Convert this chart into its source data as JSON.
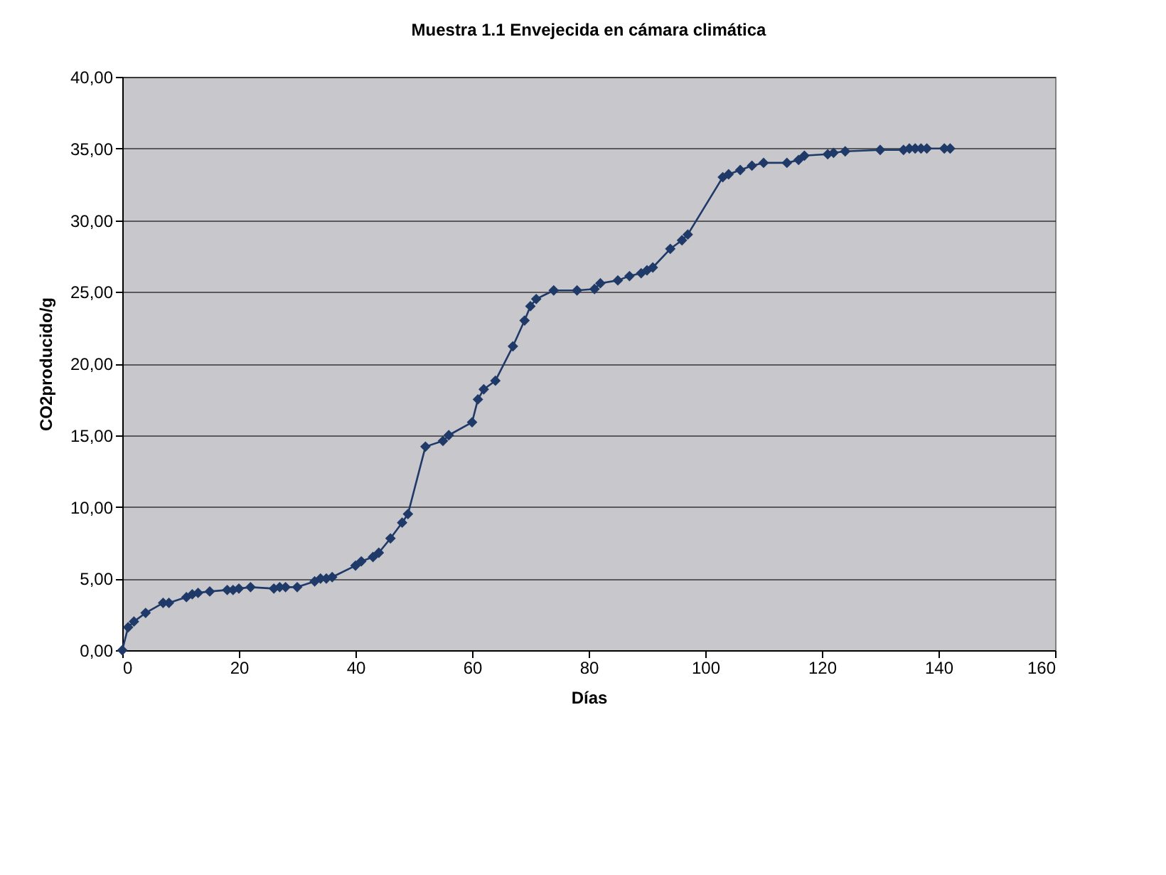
{
  "chart_data": {
    "type": "line",
    "title": "Muestra 1.1 Envejecida en cámara climática",
    "xlabel": "Días",
    "ylabel": "CO2producido/g",
    "x": [
      0,
      1,
      2,
      4,
      7,
      8,
      11,
      12,
      13,
      15,
      18,
      19,
      20,
      22,
      26,
      27,
      28,
      30,
      33,
      34,
      35,
      36,
      40,
      41,
      43,
      44,
      46,
      48,
      49,
      52,
      55,
      56,
      60,
      61,
      62,
      64,
      67,
      69,
      70,
      71,
      74,
      78,
      81,
      82,
      85,
      87,
      89,
      90,
      91,
      94,
      96,
      97,
      103,
      104,
      106,
      108,
      110,
      114,
      116,
      117,
      121,
      122,
      124,
      130,
      134,
      135,
      136,
      137,
      138,
      141,
      142
    ],
    "series": [
      {
        "color": "#1f3a68",
        "values": [
          0,
          1.6,
          2.0,
          2.6,
          3.3,
          3.3,
          3.7,
          3.9,
          4.0,
          4.1,
          4.2,
          4.2,
          4.3,
          4.4,
          4.3,
          4.4,
          4.4,
          4.4,
          4.8,
          5.0,
          5.0,
          5.1,
          5.9,
          6.2,
          6.5,
          6.8,
          7.8,
          8.9,
          9.5,
          14.2,
          14.6,
          15.0,
          15.9,
          17.5,
          18.2,
          18.8,
          21.2,
          23.0,
          24.0,
          24.5,
          25.1,
          25.1,
          25.2,
          25.6,
          25.8,
          26.1,
          26.3,
          26.5,
          26.7,
          28.0,
          28.6,
          29.0,
          33.0,
          33.2,
          33.5,
          33.8,
          34.0,
          34.0,
          34.2,
          34.5,
          34.6,
          34.7,
          34.8,
          34.9,
          34.9,
          35.0,
          35.0,
          35.0,
          35.0,
          35.0,
          35.0
        ]
      }
    ],
    "xlim": [
      0,
      160
    ],
    "xticks": [
      0,
      20,
      40,
      60,
      80,
      100,
      120,
      140,
      160
    ],
    "ylim": [
      0,
      40
    ],
    "yticks": [
      {
        "value": 0,
        "label": "0,00"
      },
      {
        "value": 5,
        "label": "5,00"
      },
      {
        "value": 10,
        "label": "10,00"
      },
      {
        "value": 15,
        "label": "15,00"
      },
      {
        "value": 20,
        "label": "20,00"
      },
      {
        "value": 25,
        "label": "25,00"
      },
      {
        "value": 30,
        "label": "30,00"
      },
      {
        "value": 35,
        "label": "35,00"
      },
      {
        "value": 40,
        "label": "40,00"
      }
    ],
    "grid": "y",
    "marker": "diamond",
    "line_style": "solid"
  }
}
